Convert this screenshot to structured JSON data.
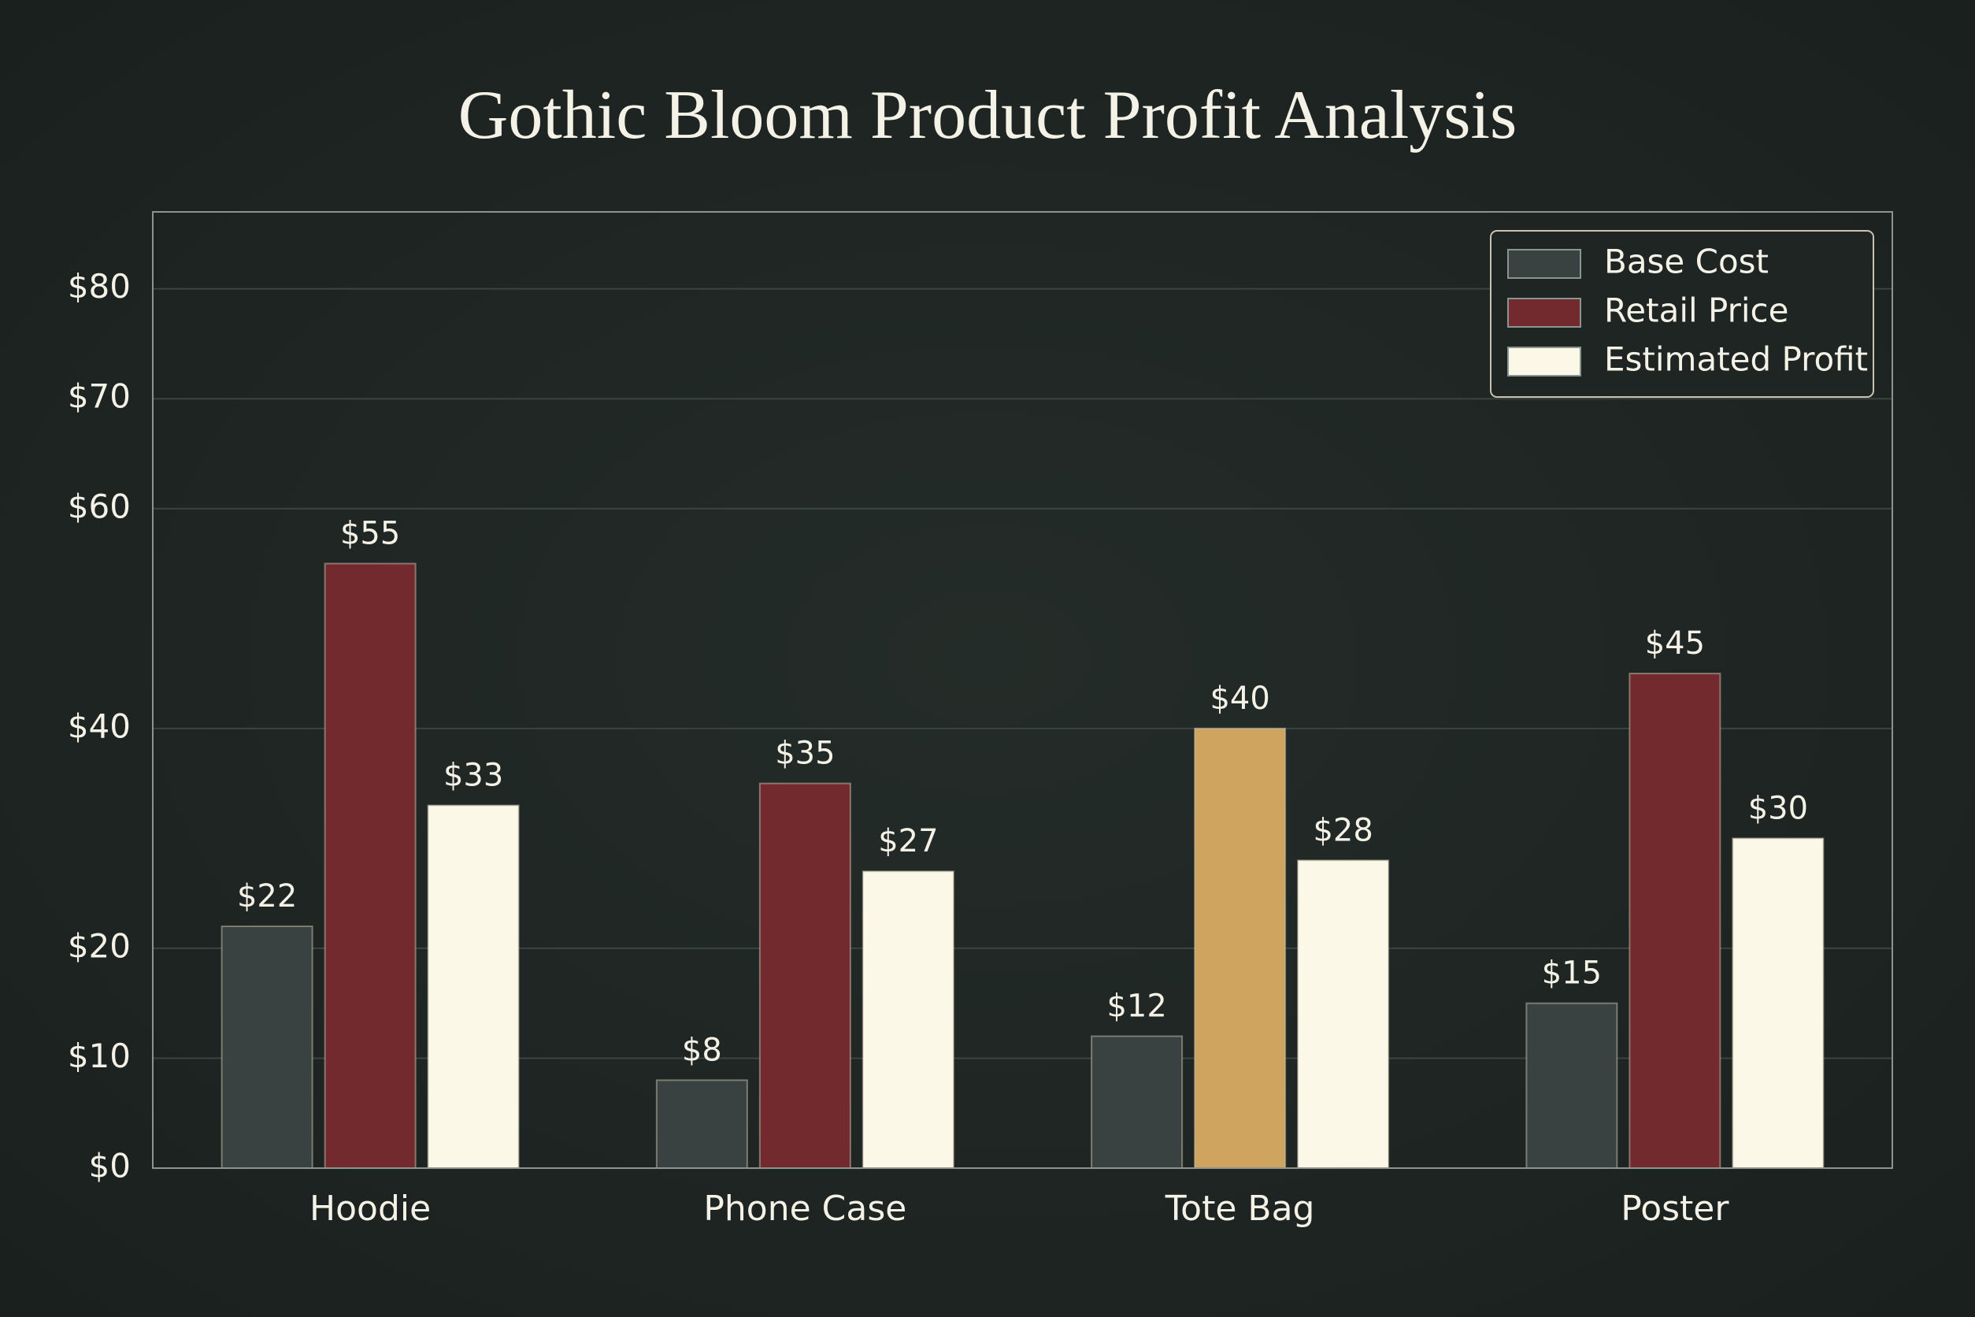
{
  "chart_data": {
    "type": "bar",
    "title": "Gothic Bloom Product Profit Analysis",
    "categories": [
      "Hoodie",
      "Phone Case",
      "Tote Bag",
      "Poster"
    ],
    "series": [
      {
        "name": "Base Cost",
        "color": "#394240",
        "values": [
          22,
          8,
          12,
          15
        ],
        "value_labels": [
          "$22",
          "$8",
          "$12",
          "$15"
        ]
      },
      {
        "name": "Retail Price",
        "color": "#722a2e",
        "colors": [
          "#722a2e",
          "#722a2e",
          "#cfa45e",
          "#722a2e"
        ],
        "values": [
          55,
          35,
          40,
          45
        ],
        "value_labels": [
          "$55",
          "$35",
          "$40",
          "$45"
        ]
      },
      {
        "name": "Estimated Profit",
        "color": "#fbf8e8",
        "values": [
          33,
          27,
          28,
          30
        ],
        "value_labels": [
          "$33",
          "$27",
          "$28",
          "$30"
        ]
      }
    ],
    "ylim": [
      0,
      87
    ],
    "yticks": [
      {
        "value": 0,
        "label": "$0"
      },
      {
        "value": 10,
        "label": "$10"
      },
      {
        "value": 20,
        "label": "$20"
      },
      {
        "value": 40,
        "label": "$40"
      },
      {
        "value": 60,
        "label": "$60"
      },
      {
        "value": 70,
        "label": "$70"
      },
      {
        "value": 80,
        "label": "$80"
      }
    ],
    "grid": true,
    "legend": "upper right"
  }
}
